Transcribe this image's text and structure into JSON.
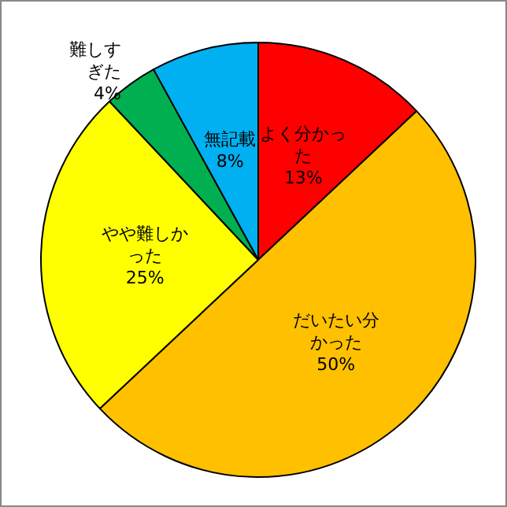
{
  "chart_data": {
    "type": "pie",
    "categories": [
      "よく分かった",
      "だいたい分かった",
      "やや難しかった",
      "難しすぎた",
      "無記載"
    ],
    "values": [
      13,
      50,
      25,
      4,
      8
    ],
    "value_labels": [
      "13%",
      "50%",
      "25%",
      "4%",
      "8%"
    ],
    "colors": [
      "#ff0000",
      "#ffc000",
      "#ffff00",
      "#00b050",
      "#00b0f0"
    ],
    "legend": false
  }
}
